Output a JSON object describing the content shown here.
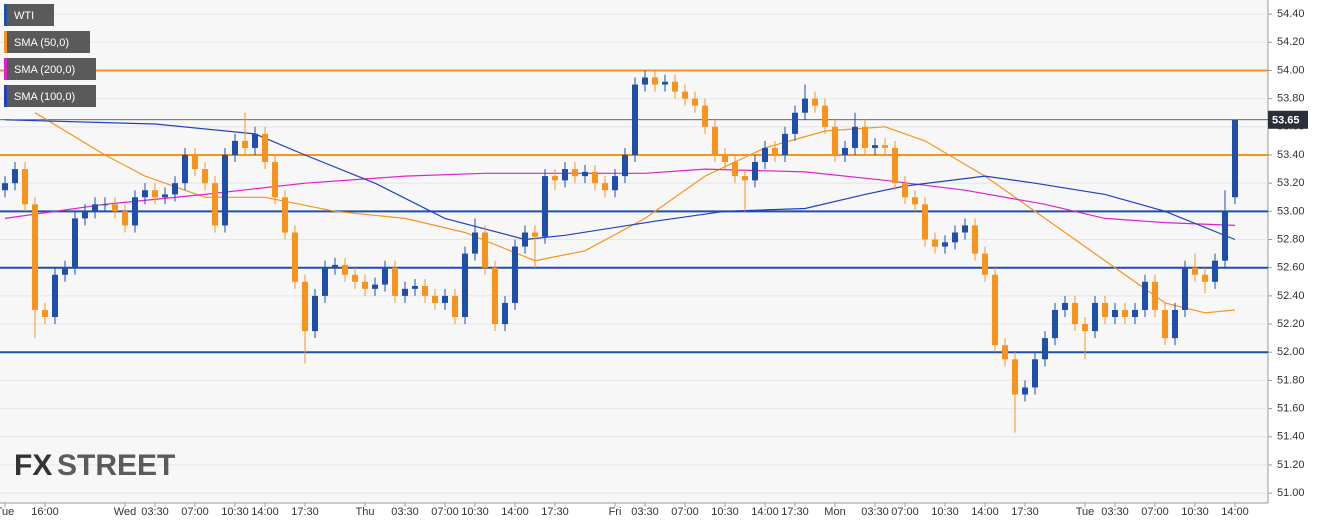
{
  "chart_data": {
    "type": "candlestick",
    "watermark": {
      "prefix": "FX",
      "suffix": "STREET"
    },
    "categories": [
      "Tue",
      null,
      null,
      null,
      "16:00",
      null,
      null,
      null,
      null,
      null,
      null,
      null,
      "Wed",
      null,
      null,
      "03:30",
      null,
      null,
      null,
      "07:00",
      null,
      null,
      null,
      "10:30",
      null,
      null,
      "14:00",
      null,
      null,
      null,
      "17:30",
      null,
      null,
      null,
      null,
      null,
      "Thu",
      null,
      null,
      null,
      "03:30",
      null,
      null,
      null,
      "07:00",
      null,
      null,
      "10:30",
      null,
      null,
      null,
      "14:00",
      null,
      null,
      null,
      "17:30",
      null,
      null,
      null,
      null,
      null,
      "Fri",
      null,
      null,
      "03:30",
      null,
      null,
      null,
      "07:00",
      null,
      null,
      null,
      "10:30",
      null,
      null,
      null,
      "14:00",
      null,
      null,
      "17:30",
      null,
      null,
      null,
      "Mon",
      null,
      null,
      null,
      "03:30",
      null,
      null,
      "07:00",
      null,
      null,
      null,
      "10:30",
      null,
      null,
      null,
      "14:00",
      null,
      null,
      null,
      "17:30",
      null,
      null,
      null,
      null,
      null,
      "Tue",
      null,
      null,
      "03:30",
      null,
      null,
      null,
      "07:00",
      null,
      null,
      null,
      "10:30",
      null,
      null,
      null,
      "14:00"
    ],
    "series": [
      {
        "name": "WTI",
        "type": "candlestick",
        "color": "#1f4fa8",
        "up_color": "#1f4fa8",
        "down_color": "#f7941d",
        "open": [
          53.15,
          53.2,
          53.3,
          53.05,
          52.3,
          52.25,
          52.55,
          52.6,
          52.95,
          53.0,
          53.05,
          53.05,
          53.0,
          52.9,
          53.1,
          53.15,
          53.1,
          53.12,
          53.2,
          53.4,
          53.3,
          53.2,
          52.9,
          53.4,
          53.5,
          53.45,
          53.55,
          53.35,
          53.1,
          52.85,
          52.5,
          52.15,
          52.4,
          52.6,
          52.62,
          52.55,
          52.5,
          52.45,
          52.48,
          52.6,
          52.4,
          52.45,
          52.47,
          52.4,
          52.35,
          52.4,
          52.25,
          52.7,
          52.85,
          52.6,
          52.2,
          52.35,
          52.75,
          52.85,
          52.82,
          53.25,
          53.22,
          53.3,
          53.25,
          53.28,
          53.2,
          53.15,
          53.25,
          53.4,
          53.9,
          53.95,
          53.9,
          53.92,
          53.85,
          53.8,
          53.75,
          53.6,
          53.4,
          53.35,
          53.25,
          53.22,
          53.35,
          53.45,
          53.4,
          53.55,
          53.7,
          53.8,
          53.75,
          53.6,
          53.4,
          53.45,
          53.6,
          53.45,
          53.47,
          53.45,
          53.2,
          53.1,
          53.05,
          52.8,
          52.75,
          52.78,
          52.85,
          52.9,
          52.7,
          52.55,
          52.05,
          51.95,
          51.7,
          51.75,
          51.95,
          52.1,
          52.3,
          52.35,
          52.2,
          52.15,
          52.35,
          52.25,
          52.3,
          52.25,
          52.3,
          52.5,
          52.3,
          52.1,
          52.3,
          52.6,
          52.55,
          52.5,
          52.65,
          53.1
        ],
        "high": [
          53.25,
          53.35,
          53.35,
          53.1,
          52.35,
          52.6,
          52.65,
          53.0,
          53.05,
          53.1,
          53.1,
          53.1,
          53.05,
          53.15,
          53.2,
          53.2,
          53.17,
          53.25,
          53.45,
          53.45,
          53.35,
          53.25,
          53.45,
          53.55,
          53.7,
          53.6,
          53.6,
          53.4,
          53.15,
          52.9,
          52.55,
          52.45,
          52.65,
          52.67,
          52.67,
          52.6,
          52.55,
          52.53,
          52.65,
          52.65,
          52.5,
          52.52,
          52.52,
          52.45,
          52.45,
          52.45,
          52.75,
          52.95,
          52.9,
          52.65,
          52.4,
          52.8,
          52.9,
          52.9,
          53.3,
          53.3,
          53.35,
          53.35,
          53.33,
          53.33,
          53.25,
          53.3,
          53.45,
          53.95,
          54.0,
          54.0,
          53.97,
          53.97,
          53.9,
          53.85,
          53.8,
          53.65,
          53.45,
          53.4,
          53.3,
          53.4,
          53.5,
          53.5,
          53.6,
          53.75,
          53.9,
          53.85,
          53.8,
          53.65,
          53.5,
          53.7,
          53.65,
          53.52,
          53.52,
          53.5,
          53.25,
          53.15,
          53.1,
          52.85,
          52.83,
          52.9,
          52.95,
          52.95,
          52.75,
          52.6,
          52.1,
          52.0,
          51.8,
          52.0,
          52.15,
          52.35,
          52.4,
          52.4,
          52.25,
          52.4,
          52.4,
          52.35,
          52.35,
          52.35,
          52.55,
          52.55,
          52.35,
          52.35,
          52.65,
          52.7,
          52.6,
          52.7,
          53.15,
          53.65
        ],
        "low": [
          53.1,
          53.15,
          53.0,
          52.1,
          52.2,
          52.2,
          52.5,
          52.55,
          52.9,
          52.95,
          53.0,
          52.95,
          52.85,
          52.85,
          53.05,
          53.05,
          53.05,
          53.07,
          53.15,
          53.25,
          53.15,
          52.85,
          52.85,
          53.35,
          53.4,
          53.4,
          53.3,
          53.05,
          52.8,
          52.45,
          51.92,
          52.1,
          52.35,
          52.55,
          52.5,
          52.45,
          52.4,
          52.4,
          52.43,
          52.35,
          52.35,
          52.4,
          52.35,
          52.3,
          52.3,
          52.2,
          52.2,
          52.65,
          52.55,
          52.15,
          52.15,
          52.3,
          52.7,
          52.6,
          52.77,
          53.15,
          53.17,
          53.2,
          53.2,
          53.15,
          53.1,
          53.1,
          53.2,
          53.35,
          53.85,
          53.85,
          53.85,
          53.8,
          53.75,
          53.7,
          53.55,
          53.35,
          53.3,
          53.2,
          53.0,
          53.17,
          53.3,
          53.35,
          53.35,
          53.5,
          53.65,
          53.7,
          53.55,
          53.35,
          53.35,
          53.4,
          53.4,
          53.4,
          53.4,
          53.15,
          53.05,
          53.0,
          52.75,
          52.7,
          52.7,
          52.73,
          52.8,
          52.65,
          52.5,
          52.0,
          51.9,
          51.43,
          51.65,
          51.7,
          51.9,
          52.05,
          52.25,
          52.15,
          51.95,
          52.1,
          52.2,
          52.2,
          52.2,
          52.2,
          52.25,
          52.25,
          52.05,
          52.05,
          52.25,
          52.5,
          52.42,
          52.45,
          52.6,
          53.05
        ],
        "close": [
          53.2,
          53.3,
          53.05,
          52.3,
          52.25,
          52.55,
          52.6,
          52.95,
          53.0,
          53.05,
          53.05,
          53.0,
          52.9,
          53.1,
          53.15,
          53.1,
          53.12,
          53.2,
          53.4,
          53.3,
          53.2,
          52.9,
          53.4,
          53.5,
          53.45,
          53.55,
          53.35,
          53.1,
          52.85,
          52.5,
          52.15,
          52.4,
          52.6,
          52.62,
          52.55,
          52.5,
          52.45,
          52.48,
          52.6,
          52.4,
          52.45,
          52.47,
          52.4,
          52.35,
          52.4,
          52.25,
          52.7,
          52.85,
          52.6,
          52.2,
          52.35,
          52.75,
          52.85,
          52.82,
          53.25,
          53.22,
          53.3,
          53.25,
          53.28,
          53.2,
          53.15,
          53.25,
          53.4,
          53.9,
          53.95,
          53.9,
          53.92,
          53.85,
          53.8,
          53.75,
          53.6,
          53.4,
          53.35,
          53.25,
          53.22,
          53.35,
          53.45,
          53.4,
          53.55,
          53.7,
          53.8,
          53.75,
          53.6,
          53.4,
          53.45,
          53.6,
          53.45,
          53.47,
          53.45,
          53.2,
          53.1,
          53.05,
          52.8,
          52.75,
          52.78,
          52.85,
          52.9,
          52.7,
          52.55,
          52.05,
          51.95,
          51.7,
          51.75,
          51.95,
          52.1,
          52.3,
          52.35,
          52.2,
          52.15,
          52.35,
          52.25,
          52.3,
          52.25,
          52.3,
          52.5,
          52.3,
          52.1,
          52.3,
          52.6,
          52.55,
          52.5,
          52.65,
          53.0,
          53.65
        ]
      },
      {
        "name": "SMA (50,0)",
        "type": "line",
        "color": "#f7941d",
        "x": [
          3,
          10,
          14,
          20,
          26,
          33,
          40,
          46,
          53,
          58,
          64,
          70,
          76,
          82,
          88,
          92,
          98,
          104,
          110,
          116,
          120,
          123
        ],
        "values": [
          53.7,
          53.4,
          53.25,
          53.1,
          53.1,
          53.0,
          52.95,
          52.85,
          52.65,
          52.72,
          52.95,
          53.25,
          53.45,
          53.57,
          53.6,
          53.5,
          53.25,
          52.95,
          52.65,
          52.35,
          52.28,
          52.3
        ]
      },
      {
        "name": "SMA (200,0)",
        "type": "line",
        "color": "#e020d0",
        "x": [
          0,
          10,
          20,
          30,
          40,
          48,
          56,
          64,
          70,
          80,
          88,
          96,
          104,
          110,
          116,
          123
        ],
        "values": [
          52.95,
          53.05,
          53.12,
          53.2,
          53.25,
          53.27,
          53.27,
          53.27,
          53.3,
          53.28,
          53.22,
          53.15,
          53.05,
          52.95,
          52.92,
          52.9
        ]
      },
      {
        "name": "SMA (100,0)",
        "type": "line",
        "color": "#2040c0",
        "x": [
          0,
          15,
          25,
          30,
          37,
          44,
          52,
          56,
          65,
          72,
          80,
          86,
          90,
          98,
          103,
          110,
          116,
          123
        ],
        "values": [
          53.65,
          53.62,
          53.55,
          53.4,
          53.2,
          52.95,
          52.8,
          52.83,
          52.93,
          53.0,
          53.02,
          53.12,
          53.18,
          53.25,
          53.2,
          53.12,
          53.0,
          52.8
        ]
      }
    ],
    "levels": [
      {
        "value": 54.0,
        "color": "#f7941d"
      },
      {
        "value": 53.4,
        "color": "#f7941d"
      },
      {
        "value": 53.0,
        "color": "#1f4fa8"
      },
      {
        "value": 52.6,
        "color": "#1f4fa8"
      },
      {
        "value": 52.0,
        "color": "#1f4fa8"
      }
    ],
    "last_price": 53.65,
    "ylim": [
      50.93,
      54.5
    ],
    "yticks": [
      {
        "value": 51.0,
        "label": "51.00"
      },
      {
        "value": 51.2,
        "label": "51.20"
      },
      {
        "value": 51.4,
        "label": "51.40"
      },
      {
        "value": 51.6,
        "label": "51.60"
      },
      {
        "value": 51.8,
        "label": "51.80"
      },
      {
        "value": 52.0,
        "label": "52.00"
      },
      {
        "value": 52.2,
        "label": "52.20"
      },
      {
        "value": 52.4,
        "label": "52.40"
      },
      {
        "value": 52.6,
        "label": "52.60"
      },
      {
        "value": 52.8,
        "label": "52.80"
      },
      {
        "value": 53.0,
        "label": "53.00"
      },
      {
        "value": 53.2,
        "label": "53.20"
      },
      {
        "value": 53.4,
        "label": "53.40"
      },
      {
        "value": 53.6,
        "label": "53.60"
      },
      {
        "value": 53.8,
        "label": "53.80"
      },
      {
        "value": 54.0,
        "label": "54.00"
      },
      {
        "value": 54.2,
        "label": "54.20"
      },
      {
        "value": 54.4,
        "label": "54.40"
      }
    ],
    "grid": true
  }
}
